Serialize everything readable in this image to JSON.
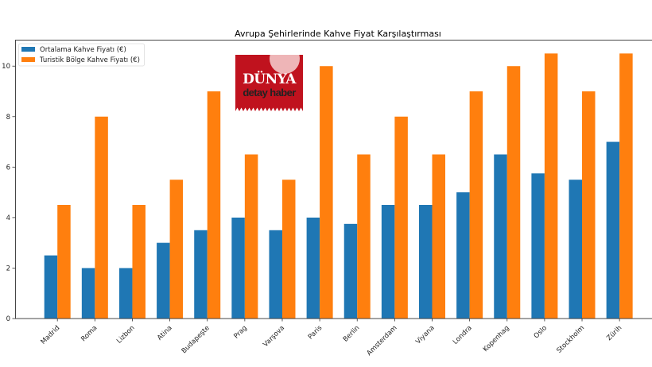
{
  "chart_data": {
    "type": "bar",
    "title": "Avrupa Şehirlerinde Kahve Fiyat Karşılaştırması",
    "xlabel": "",
    "ylabel": "",
    "ylim": [
      0,
      11.03
    ],
    "yticks": [
      0,
      2,
      4,
      6,
      8,
      10
    ],
    "grid": false,
    "legend_position": "upper left",
    "categories": [
      "Madrid",
      "Roma",
      "Lizbon",
      "Atina",
      "Budapeşte",
      "Prag",
      "Varşova",
      "Paris",
      "Berlin",
      "Amsterdam",
      "Viyana",
      "Londra",
      "Kopenhag",
      "Oslo",
      "Stockholm",
      "Zürih"
    ],
    "series": [
      {
        "name": "Ortalama Kahve Fiyatı (€)",
        "color": "#1f77b4",
        "values": [
          2.5,
          2.0,
          2.0,
          3.0,
          3.5,
          4.0,
          3.5,
          4.0,
          3.75,
          4.5,
          4.5,
          5.0,
          6.5,
          5.75,
          5.5,
          7.0
        ]
      },
      {
        "name": "Turistik Bölge Kahve Fiyatı (€)",
        "color": "#ff7f0e",
        "values": [
          4.5,
          8.0,
          4.5,
          5.5,
          9.0,
          6.5,
          5.5,
          10.0,
          6.5,
          8.0,
          6.5,
          9.0,
          10.0,
          10.5,
          9.0,
          10.5
        ]
      }
    ]
  },
  "watermark": {
    "brand": "DÜNYA",
    "subtitle": "detay haber",
    "color": "#c0121e"
  }
}
